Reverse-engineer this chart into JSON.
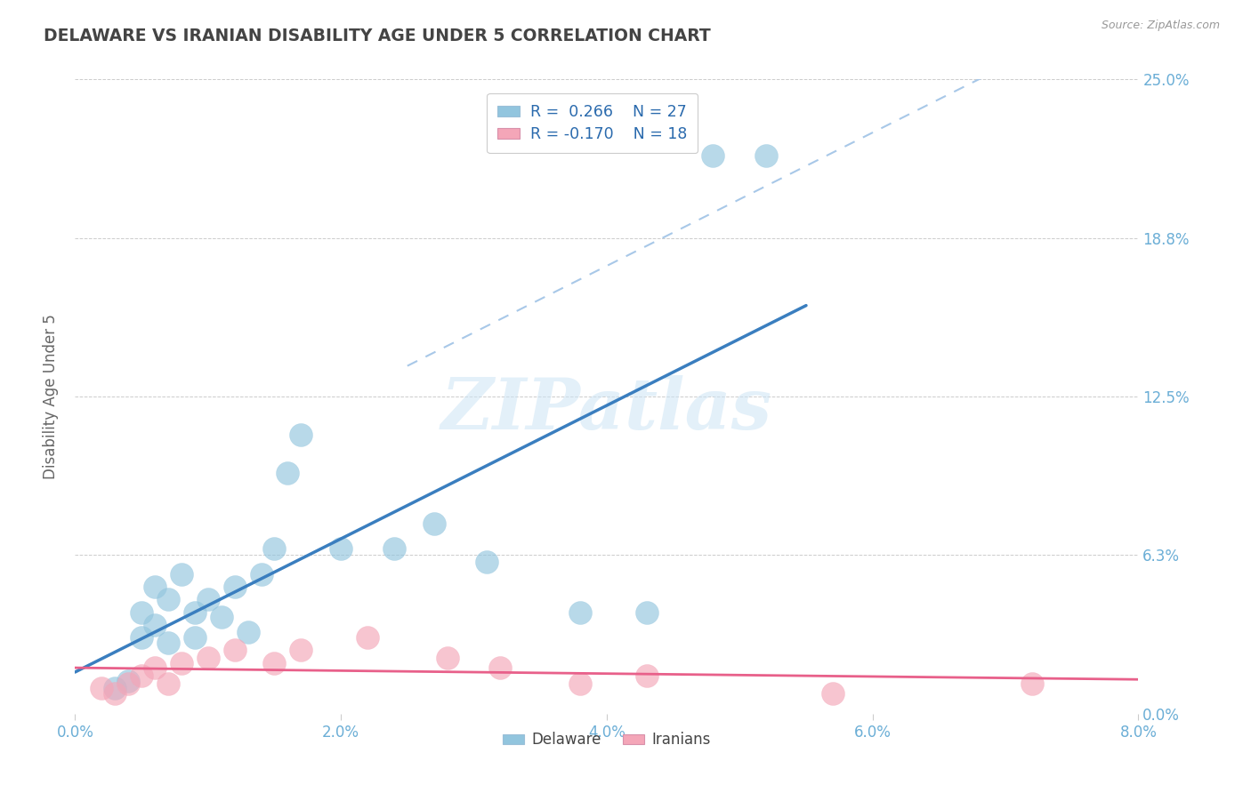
{
  "title": "DELAWARE VS IRANIAN DISABILITY AGE UNDER 5 CORRELATION CHART",
  "source_text": "Source: ZipAtlas.com",
  "ylabel": "Disability Age Under 5",
  "xlim": [
    0.0,
    0.08
  ],
  "ylim": [
    0.0,
    0.25
  ],
  "xticks": [
    0.0,
    0.02,
    0.04,
    0.06,
    0.08
  ],
  "xtick_labels": [
    "0.0%",
    "2.0%",
    "4.0%",
    "6.0%",
    "8.0%"
  ],
  "ytick_vals": [
    0.0,
    0.0625,
    0.125,
    0.1875,
    0.25
  ],
  "ytick_labels": [
    "0.0%",
    "6.3%",
    "12.5%",
    "18.8%",
    "25.0%"
  ],
  "delaware_R": 0.266,
  "delaware_N": 27,
  "iranian_R": -0.17,
  "iranian_N": 18,
  "delaware_color": "#92c5de",
  "iranian_color": "#f4a6b8",
  "delaware_line_color": "#3a7ebf",
  "iranian_line_color": "#e8608a",
  "dashed_line_color": "#a8c8e8",
  "background_color": "#ffffff",
  "grid_color": "#cccccc",
  "watermark_text": "ZIPatlas",
  "title_color": "#444444",
  "axis_label_color": "#6baed6",
  "legend_r_color": "#2166ac",
  "legend_rn_color2": "#e75480",
  "delaware_x": [
    0.003,
    0.004,
    0.005,
    0.005,
    0.006,
    0.006,
    0.007,
    0.007,
    0.008,
    0.009,
    0.009,
    0.01,
    0.011,
    0.012,
    0.013,
    0.014,
    0.015,
    0.016,
    0.017,
    0.02,
    0.024,
    0.027,
    0.031,
    0.038,
    0.043,
    0.048,
    0.052
  ],
  "delaware_y": [
    0.01,
    0.013,
    0.03,
    0.04,
    0.035,
    0.05,
    0.028,
    0.045,
    0.055,
    0.03,
    0.04,
    0.045,
    0.038,
    0.05,
    0.032,
    0.055,
    0.065,
    0.095,
    0.11,
    0.065,
    0.065,
    0.075,
    0.06,
    0.04,
    0.04,
    0.22,
    0.22
  ],
  "iranian_x": [
    0.002,
    0.003,
    0.004,
    0.005,
    0.006,
    0.007,
    0.008,
    0.01,
    0.012,
    0.015,
    0.017,
    0.022,
    0.028,
    0.032,
    0.038,
    0.043,
    0.057,
    0.072
  ],
  "iranian_y": [
    0.01,
    0.008,
    0.012,
    0.015,
    0.018,
    0.012,
    0.02,
    0.022,
    0.025,
    0.02,
    0.025,
    0.03,
    0.022,
    0.018,
    0.012,
    0.015,
    0.008,
    0.012
  ]
}
